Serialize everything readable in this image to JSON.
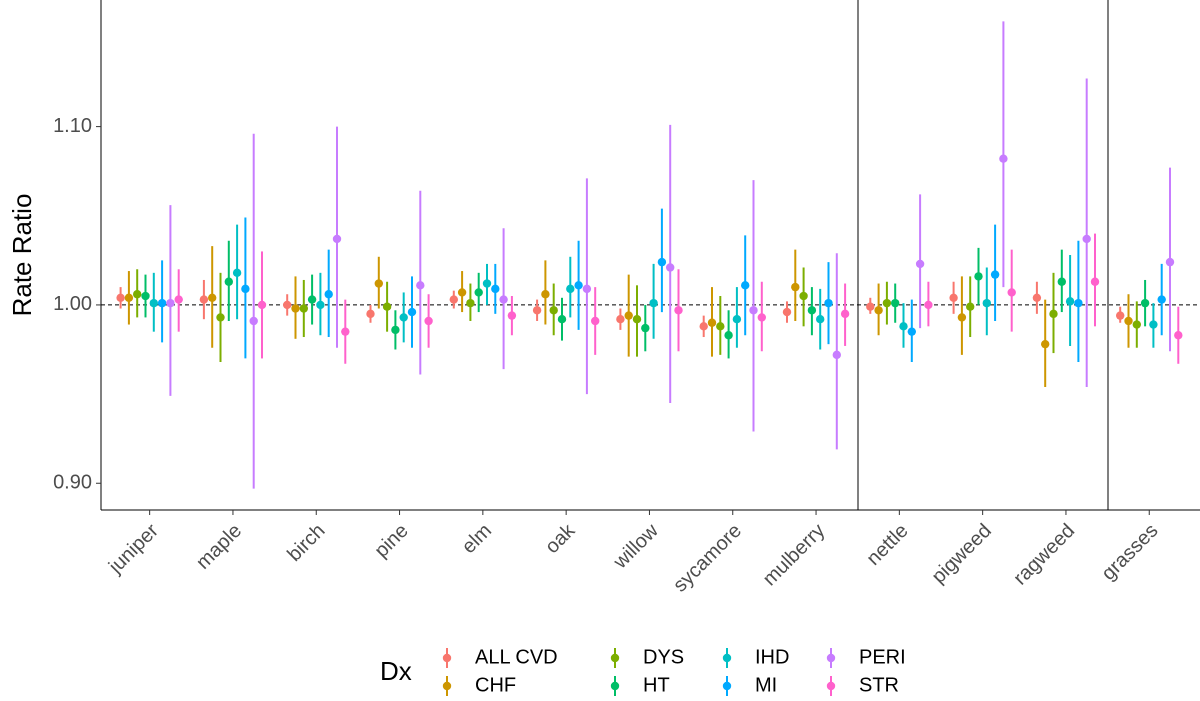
{
  "chart_data": {
    "type": "pointrange",
    "y_label": "Rate Ratio",
    "legend_title": "Dx",
    "legend_position": "bottom",
    "categories": [
      "juniper",
      "maple",
      "birch",
      "pine",
      "elm",
      "oak",
      "willow",
      "sycamore",
      "mulberry",
      "nettle",
      "pigweed",
      "ragweed",
      "grasses"
    ],
    "ylim": [
      0.885,
      1.171
    ],
    "yticks": [
      {
        "value": 0.9,
        "label": "0.90"
      },
      {
        "value": 1.0,
        "label": "1.00"
      },
      {
        "value": 1.1,
        "label": "1.10"
      }
    ],
    "reference_line": 1,
    "series": [
      {
        "name": "ALL CVD",
        "color": "#F8766D",
        "values": [
          1.004,
          1.003,
          1.0,
          0.995,
          1.003,
          0.997,
          0.992,
          0.988,
          0.996,
          0.999,
          1.004,
          1.004,
          0.994
        ],
        "lower": [
          0.998,
          0.992,
          0.994,
          0.99,
          0.998,
          0.991,
          0.986,
          0.982,
          0.99,
          0.995,
          0.995,
          0.995,
          0.99
        ],
        "upper": [
          1.01,
          1.014,
          1.006,
          1.0,
          1.008,
          1.003,
          0.998,
          0.994,
          1.002,
          1.004,
          1.013,
          1.013,
          0.999
        ]
      },
      {
        "name": "CHF",
        "color": "#CD9600",
        "values": [
          1.004,
          1.004,
          0.998,
          1.012,
          1.007,
          1.006,
          0.994,
          0.99,
          1.01,
          0.997,
          0.993,
          0.978,
          0.991
        ],
        "lower": [
          0.989,
          0.976,
          0.981,
          0.998,
          0.996,
          0.989,
          0.971,
          0.971,
          0.991,
          0.983,
          0.972,
          0.954,
          0.976
        ],
        "upper": [
          1.019,
          1.033,
          1.016,
          1.027,
          1.019,
          1.025,
          1.017,
          1.01,
          1.031,
          1.012,
          1.016,
          1.003,
          1.006
        ]
      },
      {
        "name": "DYS",
        "color": "#7CAE00",
        "values": [
          1.006,
          0.993,
          0.998,
          0.999,
          1.001,
          0.997,
          0.992,
          0.988,
          1.005,
          1.001,
          0.999,
          0.995,
          0.989
        ],
        "lower": [
          0.993,
          0.968,
          0.982,
          0.985,
          0.991,
          0.983,
          0.971,
          0.972,
          0.988,
          0.989,
          0.982,
          0.973,
          0.976
        ],
        "upper": [
          1.02,
          1.018,
          1.014,
          1.013,
          1.012,
          1.012,
          1.011,
          1.005,
          1.021,
          1.013,
          1.016,
          1.018,
          1.002
        ]
      },
      {
        "name": "HT",
        "color": "#00BE67",
        "values": [
          1.005,
          1.013,
          1.003,
          0.986,
          1.007,
          0.992,
          0.987,
          0.983,
          0.997,
          1.001,
          1.016,
          1.013,
          1.001
        ],
        "lower": [
          0.993,
          0.991,
          0.989,
          0.975,
          0.996,
          0.98,
          0.974,
          0.97,
          0.983,
          0.99,
          1.0,
          0.996,
          0.988
        ],
        "upper": [
          1.017,
          1.036,
          1.017,
          0.997,
          1.018,
          1.004,
          1.0,
          0.997,
          1.01,
          1.012,
          1.032,
          1.031,
          1.014
        ]
      },
      {
        "name": "IHD",
        "color": "#00BFC4",
        "values": [
          1.001,
          1.018,
          1.0,
          0.993,
          1.012,
          1.009,
          1.001,
          0.992,
          0.992,
          0.988,
          1.001,
          1.002,
          0.989
        ],
        "lower": [
          0.985,
          0.992,
          0.983,
          0.979,
          1.0,
          0.993,
          0.981,
          0.976,
          0.975,
          0.976,
          0.983,
          0.977,
          0.976
        ],
        "upper": [
          1.018,
          1.045,
          1.018,
          1.007,
          1.023,
          1.027,
          1.023,
          1.01,
          1.009,
          1.001,
          1.021,
          1.028,
          1.001
        ]
      },
      {
        "name": "MI",
        "color": "#00A9FF",
        "values": [
          1.001,
          1.009,
          1.006,
          0.996,
          1.009,
          1.011,
          1.024,
          1.011,
          1.001,
          0.985,
          1.017,
          1.001,
          1.003
        ],
        "lower": [
          0.979,
          0.97,
          0.982,
          0.976,
          0.995,
          0.986,
          0.996,
          0.983,
          0.978,
          0.968,
          0.991,
          0.968,
          0.983
        ],
        "upper": [
          1.025,
          1.049,
          1.031,
          1.016,
          1.023,
          1.036,
          1.054,
          1.039,
          1.024,
          1.003,
          1.045,
          1.036,
          1.023
        ]
      },
      {
        "name": "PERI",
        "color": "#C77CFF",
        "values": [
          1.001,
          0.991,
          1.037,
          1.011,
          1.003,
          1.009,
          1.021,
          0.997,
          0.972,
          1.023,
          1.082,
          1.037,
          1.024
        ],
        "lower": [
          0.949,
          0.897,
          0.976,
          0.961,
          0.964,
          0.95,
          0.945,
          0.929,
          0.919,
          0.987,
          1.01,
          0.954,
          0.974
        ],
        "upper": [
          1.056,
          1.096,
          1.1,
          1.064,
          1.043,
          1.071,
          1.101,
          1.07,
          1.029,
          1.062,
          1.159,
          1.127,
          1.077
        ]
      },
      {
        "name": "STR",
        "color": "#FF61CC",
        "values": [
          1.003,
          1.0,
          0.985,
          0.991,
          0.994,
          0.991,
          0.997,
          0.993,
          0.995,
          1.0,
          1.007,
          1.013,
          0.983
        ],
        "lower": [
          0.985,
          0.97,
          0.967,
          0.976,
          0.983,
          0.972,
          0.974,
          0.974,
          0.977,
          0.988,
          0.985,
          0.988,
          0.967
        ],
        "upper": [
          1.02,
          1.03,
          1.003,
          1.006,
          1.005,
          1.01,
          1.02,
          1.013,
          1.012,
          1.013,
          1.031,
          1.04,
          0.999
        ]
      }
    ]
  }
}
